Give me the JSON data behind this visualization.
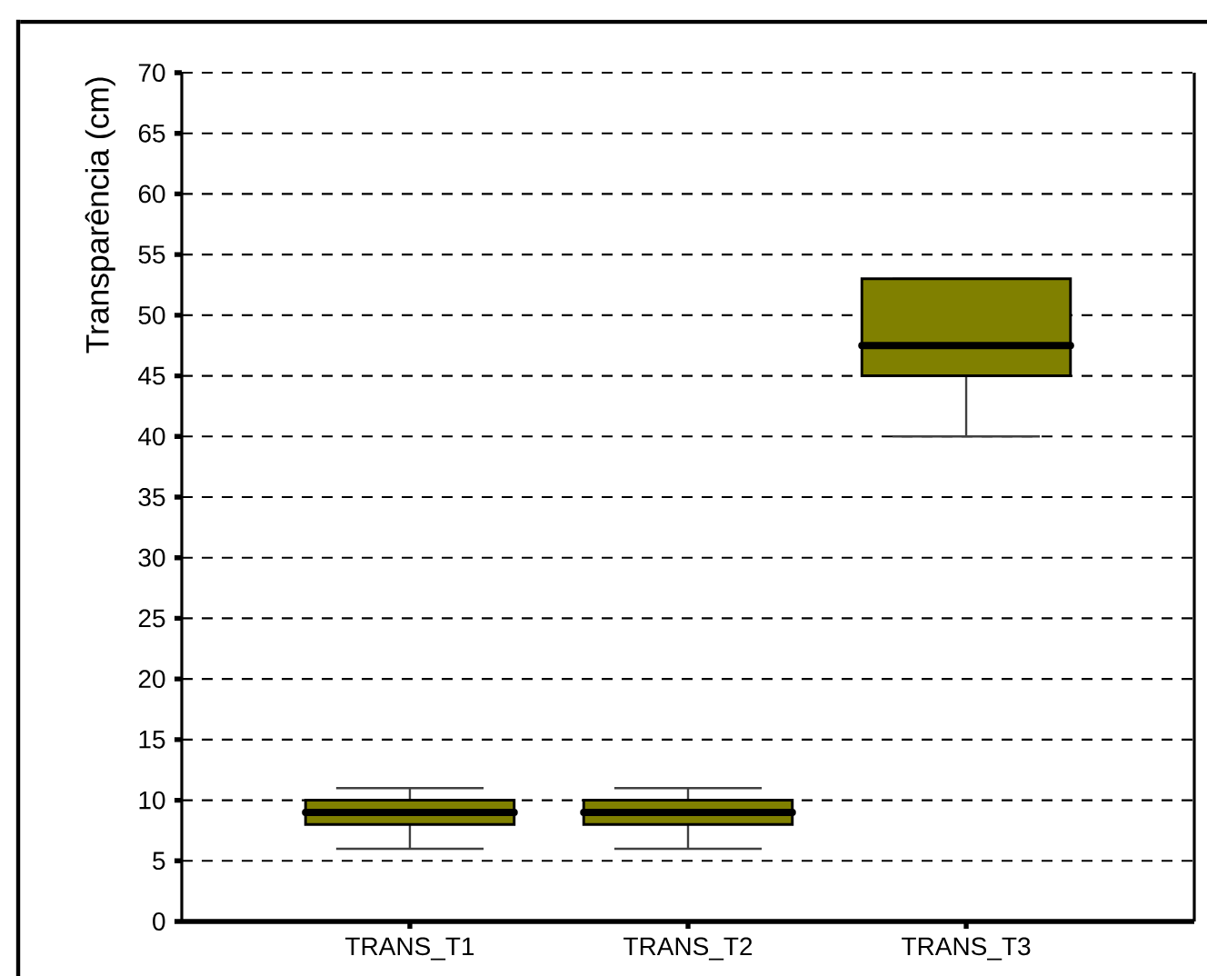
{
  "chart_data": {
    "type": "box",
    "ylabel": "Transparência (cm)",
    "categories": [
      "TRANS_T1",
      "TRANS_T2",
      "TRANS_T3"
    ],
    "boxes": [
      {
        "low": 6,
        "q1": 8,
        "median": 9,
        "q3": 10,
        "high": 11
      },
      {
        "low": 6,
        "q1": 8,
        "median": 9,
        "q3": 10,
        "high": 11
      },
      {
        "low": 40,
        "q1": 45,
        "median": 47.5,
        "q3": 53,
        "high": 53
      }
    ],
    "color": "#808000",
    "ylim": [
      0,
      70
    ],
    "yticks": [
      0,
      5,
      10,
      15,
      20,
      25,
      30,
      35,
      40,
      45,
      50,
      55,
      60,
      65,
      70
    ],
    "grid": "y"
  }
}
